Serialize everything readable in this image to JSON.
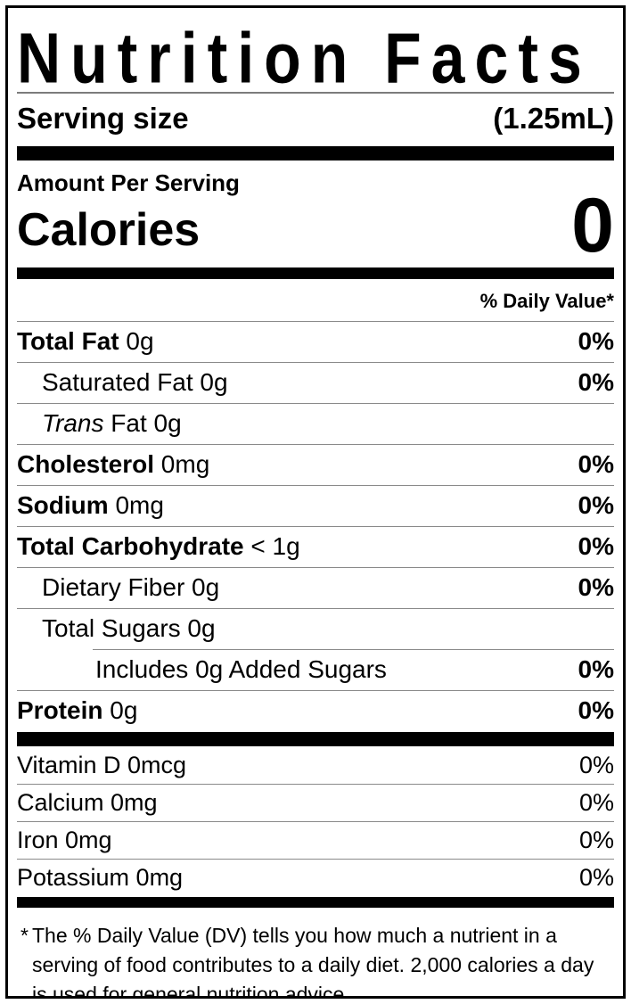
{
  "label": {
    "title": "Nutrition Facts",
    "serving": {
      "label": "Serving size",
      "value": "(1.25mL)"
    },
    "amount_per_serving": "Amount Per Serving",
    "calories": {
      "label": "Calories",
      "value": "0"
    },
    "daily_value_header": "% Daily Value*",
    "nutrients": [
      {
        "bold": "Total Fat",
        "rest": " 0g",
        "dv": "0%"
      },
      {
        "rest": "Saturated Fat 0g",
        "dv": "0%"
      },
      {
        "italic": "Trans",
        "rest": " Fat 0g",
        "dv": ""
      },
      {
        "bold": "Cholesterol",
        "rest": " 0mg",
        "dv": "0%"
      },
      {
        "bold": "Sodium",
        "rest": " 0mg",
        "dv": "0%"
      },
      {
        "bold": "Total Carbohydrate",
        "rest": " < 1g",
        "dv": "0%"
      },
      {
        "rest": "Dietary Fiber 0g",
        "dv": "0%"
      },
      {
        "rest": "Total Sugars 0g",
        "dv": ""
      },
      {
        "rest": "Includes 0g Added Sugars",
        "dv": "0%"
      },
      {
        "bold": "Protein",
        "rest": " 0g",
        "dv": "0%"
      }
    ],
    "micronutrients": [
      {
        "name": "Vitamin D 0mcg",
        "dv": "0%"
      },
      {
        "name": "Calcium 0mg",
        "dv": "0%"
      },
      {
        "name": "Iron 0mg",
        "dv": "0%"
      },
      {
        "name": "Potassium 0mg",
        "dv": "0%"
      }
    ],
    "footnote": {
      "marker": "*",
      "text": "The % Daily Value (DV) tells you how much a nutrient in a serving of food contributes to a daily diet. 2,000 calories a day is used for general nutrition advice."
    },
    "colors": {
      "ink": "#000000",
      "paper": "#ffffff",
      "hairline": "#8a8a8a"
    }
  }
}
